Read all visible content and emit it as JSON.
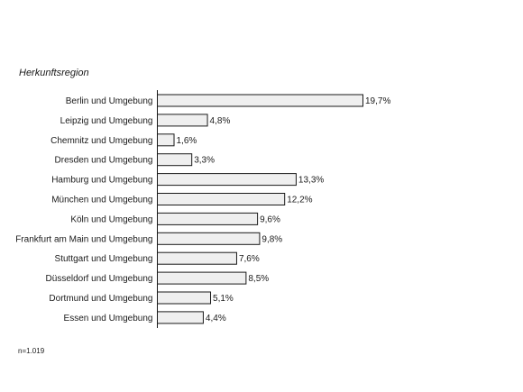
{
  "chart_data": {
    "type": "bar",
    "orientation": "horizontal",
    "title": "Herkunftsregion",
    "categories": [
      "Berlin und Umgebung",
      "Leipzig und Umgebung",
      "Chemnitz und Umgebung",
      "Dresden und Umgebung",
      "Hamburg und Umgebung",
      "München und Umgebung",
      "Köln und Umgebung",
      "Frankfurt am Main und Umgebung",
      "Stuttgart und Umgebung",
      "Düsseldorf und Umgebung",
      "Dortmund und Umgebung",
      "Essen und Umgebung"
    ],
    "values": [
      19.7,
      4.8,
      1.6,
      3.3,
      13.3,
      12.2,
      9.6,
      9.8,
      7.6,
      8.5,
      5.1,
      4.4
    ],
    "value_labels": [
      "19,7%",
      "4,8%",
      "1,6%",
      "3,3%",
      "13,3%",
      "12,2%",
      "9,6%",
      "9,8%",
      "7,6%",
      "8,5%",
      "5,1%",
      "4,4%"
    ],
    "xlim": [
      0,
      19.7
    ],
    "grid": false,
    "colors": {
      "bar_fill": "#efefef",
      "bar_stroke": "#1a1a1a",
      "axis": "#1a1a1a",
      "text": "#1a1a1a"
    },
    "note": "n=1.019"
  }
}
